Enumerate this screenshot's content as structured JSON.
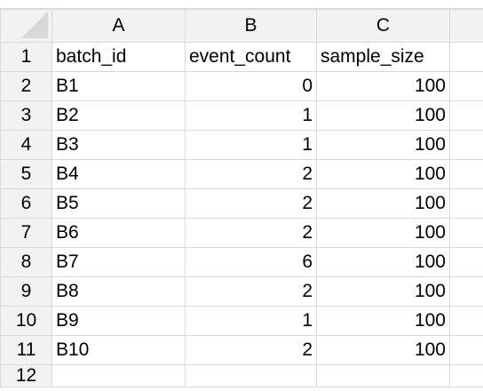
{
  "spreadsheet": {
    "column_headers": [
      "A",
      "B",
      "C"
    ],
    "rows": [
      {
        "row_number": "1",
        "cells": [
          "batch_id",
          "event_count",
          "sample_size"
        ]
      },
      {
        "row_number": "2",
        "cells": [
          "B1",
          "0",
          "100"
        ]
      },
      {
        "row_number": "3",
        "cells": [
          "B2",
          "1",
          "100"
        ]
      },
      {
        "row_number": "4",
        "cells": [
          "B3",
          "1",
          "100"
        ]
      },
      {
        "row_number": "5",
        "cells": [
          "B4",
          "2",
          "100"
        ]
      },
      {
        "row_number": "6",
        "cells": [
          "B5",
          "2",
          "100"
        ]
      },
      {
        "row_number": "7",
        "cells": [
          "B6",
          "2",
          "100"
        ]
      },
      {
        "row_number": "8",
        "cells": [
          "B7",
          "6",
          "100"
        ]
      },
      {
        "row_number": "9",
        "cells": [
          "B8",
          "2",
          "100"
        ]
      },
      {
        "row_number": "10",
        "cells": [
          "B9",
          "1",
          "100"
        ]
      },
      {
        "row_number": "11",
        "cells": [
          "B10",
          "2",
          "100"
        ]
      },
      {
        "row_number": "12",
        "cells": [
          "",
          "",
          ""
        ]
      }
    ],
    "colors": {
      "header_background": "#f2f2f2",
      "gridline": "#d9d9d9",
      "header_text": "#555555",
      "cell_text": "#000000"
    }
  }
}
